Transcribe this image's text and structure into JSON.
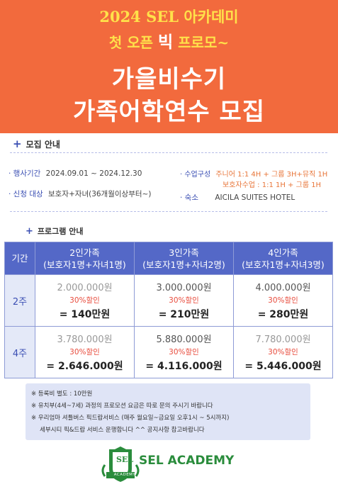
{
  "hero": {
    "line1": "2024 SEL 아카데미",
    "line2_pre": "첫 오픈 ",
    "line2_big": "빅",
    "line2_post": " 프로모~",
    "line3": "가을비수기",
    "line4": "가족어학연수 모집"
  },
  "recruit": {
    "heading": "모집 안내",
    "event_label": "· 행사기간",
    "event_value": "2024.09.01 ~ 2024.12.30",
    "apply_label": "· 신청 대상",
    "apply_value": "보호자+자녀(36개월이상부터~)",
    "class_label": "· 수업구성",
    "class_value1": "주니어 1:1 4H + 그룹 3H+뮤직 1H",
    "class_value2": "보호자수업 : 1:1 1H + 그룹 1H",
    "hotel_label": "· 숙소",
    "hotel_value": "AICILA SUITES HOTEL"
  },
  "program": {
    "heading": "프로그램 안내",
    "col_period": "기간",
    "columns": [
      {
        "title": "2인가족",
        "sub": "(보호자1명+자녀1명)"
      },
      {
        "title": "3인가족",
        "sub": "(보호자1명+자녀2명)"
      },
      {
        "title": "4인가족",
        "sub": "(보호자1명+자녀3명)"
      }
    ],
    "rows": [
      {
        "period": "2주",
        "cells": [
          {
            "orig": "2.000.000원",
            "disc": "30%할인",
            "final": "= 140만원"
          },
          {
            "orig": "3.000.000원",
            "disc": "30%할인",
            "final": "= 210만원"
          },
          {
            "orig": "4.000.000원",
            "disc": "30%할인",
            "final": "= 280만원"
          }
        ]
      },
      {
        "period": "4주",
        "cells": [
          {
            "orig": "3.780.000원",
            "disc": "30%할인",
            "final": "= 2.646.000원"
          },
          {
            "orig": "5.880.000원",
            "disc": "30%할인",
            "final": "= 4.116.000원"
          },
          {
            "orig": "7.780.000원",
            "disc": "30%할인",
            "final": "= 5.446.000원"
          }
        ]
      }
    ]
  },
  "notes": [
    "※ 등록비 별도 : 10만원",
    "※ 유치부(4세~7세) 과정의 프로모션  요금은 따로 문의 주시기 바랍니다",
    "※ 우리엄마 셔틀버스 픽드랍서비스 (매주 월요일~금요일 오후1시 ~ 5시까지)",
    "세부시티 픽&드랍 서비스 운행합니다  ^^   공지사항 참고바랍니다"
  ],
  "logo": {
    "name": "SEL ACADEMY",
    "emblem_text": "SEL",
    "emblem_ribbon": "ACADEMY"
  },
  "colors": {
    "hero_bg": "#f26a3d",
    "hero_yellow": "#ffe14a",
    "accent_blue": "#3b4fb3",
    "header_blue": "#5468c7",
    "discount_red": "#e84c3d",
    "logo_green": "#2a8c3c"
  }
}
